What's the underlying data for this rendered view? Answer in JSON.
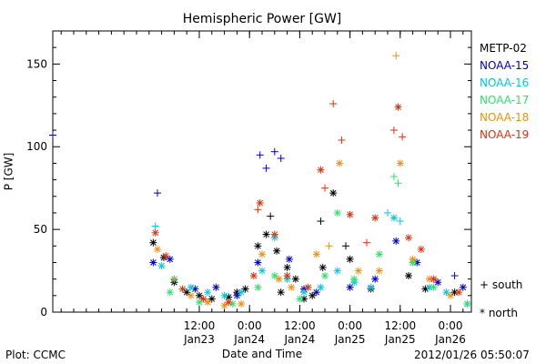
{
  "chart_data": {
    "type": "scatter",
    "title": "Hemispheric Power [GW]",
    "ylabel": "P [GW]",
    "xlabel": "Date and Time",
    "xlim": [
      "2012-01-22 01:00",
      "2012-01-26 05:00"
    ],
    "ylim": [
      0,
      170
    ],
    "yticks": [
      0,
      50,
      100,
      150
    ],
    "xticks": [
      {
        "time": "2012-01-23 12:00",
        "label1": "12:00",
        "label2": "Jan23"
      },
      {
        "time": "2012-01-24 00:00",
        "label1": "0:00",
        "label2": "Jan24"
      },
      {
        "time": "2012-01-24 12:00",
        "label1": "12:00",
        "label2": "Jan24"
      },
      {
        "time": "2012-01-25 00:00",
        "label1": "0:00",
        "label2": "Jan25"
      },
      {
        "time": "2012-01-25 12:00",
        "label1": "12:00",
        "label2": "Jan25"
      },
      {
        "time": "2012-01-26 00:00",
        "label1": "0:00",
        "label2": "Jan26"
      }
    ],
    "legend_position": "right",
    "marker_legend": [
      {
        "symbol": "+",
        "label": "south"
      },
      {
        "symbol": "*",
        "label": "north"
      }
    ],
    "series": [
      {
        "name": "METP-02",
        "color": "#000000",
        "points": [
          [
            "2012-01-23 01:00",
            42,
            "*"
          ],
          [
            "2012-01-23 03:30",
            33,
            "*"
          ],
          [
            "2012-01-23 06:00",
            18,
            "*"
          ],
          [
            "2012-01-23 09:00",
            12,
            "*"
          ],
          [
            "2012-01-23 12:00",
            10,
            "*"
          ],
          [
            "2012-01-23 15:00",
            8,
            "*"
          ],
          [
            "2012-01-23 19:00",
            9,
            "*"
          ],
          [
            "2012-01-23 21:00",
            12,
            "*"
          ],
          [
            "2012-01-23 23:00",
            14,
            "*"
          ],
          [
            "2012-01-24 02:00",
            40,
            "*"
          ],
          [
            "2012-01-24 04:00",
            47,
            "*"
          ],
          [
            "2012-01-24 05:00",
            58,
            "+"
          ],
          [
            "2012-01-24 06:30",
            37,
            "*"
          ],
          [
            "2012-01-24 07:30",
            12,
            "*"
          ],
          [
            "2012-01-24 09:00",
            27,
            "*"
          ],
          [
            "2012-01-24 11:00",
            20,
            "*"
          ],
          [
            "2012-01-24 13:00",
            8,
            "*"
          ],
          [
            "2012-01-24 15:00",
            10,
            "*"
          ],
          [
            "2012-01-24 17:00",
            55,
            "+"
          ],
          [
            "2012-01-24 17:30",
            27,
            "*"
          ],
          [
            "2012-01-24 20:00",
            72,
            "*"
          ],
          [
            "2012-01-24 23:00",
            40,
            "+"
          ],
          [
            "2012-01-25 00:00",
            32,
            "*"
          ],
          [
            "2012-01-25 05:00",
            14,
            "*"
          ],
          [
            "2012-01-25 14:00",
            22,
            "*"
          ],
          [
            "2012-01-25 18:00",
            14,
            "*"
          ],
          [
            "2012-01-26 01:00",
            12,
            "*"
          ]
        ]
      },
      {
        "name": "NOAA-15",
        "color": "#0000c8",
        "points": [
          [
            "2012-01-22 01:00",
            107,
            "+"
          ],
          [
            "2012-01-23 02:00",
            72,
            "+"
          ],
          [
            "2012-01-23 01:00",
            30,
            "*"
          ],
          [
            "2012-01-23 05:00",
            32,
            "*"
          ],
          [
            "2012-01-23 11:00",
            14,
            "*"
          ],
          [
            "2012-01-23 16:00",
            15,
            "*"
          ],
          [
            "2012-01-23 21:00",
            10,
            "*"
          ],
          [
            "2012-01-24 02:00",
            30,
            "*"
          ],
          [
            "2012-01-24 02:30",
            95,
            "+"
          ],
          [
            "2012-01-24 04:00",
            87,
            "+"
          ],
          [
            "2012-01-24 06:00",
            97,
            "+"
          ],
          [
            "2012-01-24 07:30",
            93,
            "+"
          ],
          [
            "2012-01-24 09:30",
            32,
            "*"
          ],
          [
            "2012-01-24 13:00",
            14,
            "*"
          ],
          [
            "2012-01-24 16:00",
            12,
            "*"
          ],
          [
            "2012-01-25 00:00",
            15,
            "*"
          ],
          [
            "2012-01-25 06:00",
            20,
            "*"
          ],
          [
            "2012-01-25 11:00",
            43,
            "*"
          ],
          [
            "2012-01-25 16:00",
            30,
            "*"
          ],
          [
            "2012-01-25 21:00",
            18,
            "*"
          ],
          [
            "2012-01-26 01:00",
            22,
            "+"
          ],
          [
            "2012-01-26 03:00",
            15,
            "*"
          ]
        ]
      },
      {
        "name": "NOAA-16",
        "color": "#00c8e0",
        "points": [
          [
            "2012-01-23 01:30",
            52,
            "+"
          ],
          [
            "2012-01-23 03:00",
            28,
            "*"
          ],
          [
            "2012-01-23 06:00",
            20,
            "*"
          ],
          [
            "2012-01-23 10:00",
            15,
            "*"
          ],
          [
            "2012-01-23 14:00",
            12,
            "*"
          ],
          [
            "2012-01-23 18:00",
            10,
            "*"
          ],
          [
            "2012-01-23 22:00",
            12,
            "*"
          ],
          [
            "2012-01-24 03:00",
            25,
            "*"
          ],
          [
            "2012-01-24 06:00",
            45,
            "*"
          ],
          [
            "2012-01-24 09:00",
            20,
            "*"
          ],
          [
            "2012-01-24 13:00",
            12,
            "*"
          ],
          [
            "2012-01-24 17:00",
            15,
            "*"
          ],
          [
            "2012-01-24 21:00",
            25,
            "*"
          ],
          [
            "2012-01-25 01:00",
            18,
            "*"
          ],
          [
            "2012-01-25 05:00",
            15,
            "*"
          ],
          [
            "2012-01-25 09:00",
            60,
            "+"
          ],
          [
            "2012-01-25 10:30",
            57,
            "*"
          ],
          [
            "2012-01-25 12:00",
            55,
            "+"
          ],
          [
            "2012-01-25 15:00",
            30,
            "*"
          ],
          [
            "2012-01-25 19:00",
            15,
            "*"
          ],
          [
            "2012-01-25 23:00",
            12,
            "*"
          ],
          [
            "2012-01-26 04:00",
            5,
            "*"
          ]
        ]
      },
      {
        "name": "NOAA-17",
        "color": "#30e070",
        "points": [
          [
            "2012-01-23 05:00",
            12,
            "*"
          ],
          [
            "2012-01-23 12:00",
            6,
            "*"
          ],
          [
            "2012-01-23 20:00",
            5,
            "*"
          ],
          [
            "2012-01-24 02:00",
            15,
            "*"
          ],
          [
            "2012-01-24 06:00",
            22,
            "*"
          ],
          [
            "2012-01-24 12:00",
            8,
            "*"
          ],
          [
            "2012-01-24 18:00",
            22,
            "*"
          ],
          [
            "2012-01-24 21:00",
            60,
            "*"
          ],
          [
            "2012-01-25 01:00",
            20,
            "*"
          ],
          [
            "2012-01-25 07:00",
            35,
            "*"
          ],
          [
            "2012-01-25 10:30",
            82,
            "+"
          ],
          [
            "2012-01-25 11:30",
            78,
            "+"
          ],
          [
            "2012-01-25 15:00",
            30,
            "*"
          ],
          [
            "2012-01-25 20:00",
            15,
            "*"
          ],
          [
            "2012-01-26 04:00",
            5,
            "*"
          ]
        ]
      },
      {
        "name": "NOAA-18",
        "color": "#f09010",
        "points": [
          [
            "2012-01-23 02:00",
            38,
            "*"
          ],
          [
            "2012-01-23 06:00",
            20,
            "+"
          ],
          [
            "2012-01-23 10:00",
            10,
            "*"
          ],
          [
            "2012-01-23 14:00",
            6,
            "*"
          ],
          [
            "2012-01-23 18:00",
            4,
            "*"
          ],
          [
            "2012-01-23 22:00",
            5,
            "*"
          ],
          [
            "2012-01-24 03:00",
            35,
            "*"
          ],
          [
            "2012-01-24 07:00",
            20,
            "*"
          ],
          [
            "2012-01-24 10:00",
            15,
            "*"
          ],
          [
            "2012-01-24 16:00",
            35,
            "*"
          ],
          [
            "2012-01-24 19:00",
            40,
            "+"
          ],
          [
            "2012-01-24 21:30",
            90,
            "*"
          ],
          [
            "2012-01-25 02:00",
            25,
            "*"
          ],
          [
            "2012-01-25 07:00",
            25,
            "*"
          ],
          [
            "2012-01-25 11:00",
            155,
            "+"
          ],
          [
            "2012-01-25 12:00",
            90,
            "*"
          ],
          [
            "2012-01-25 15:00",
            32,
            "*"
          ],
          [
            "2012-01-25 19:00",
            20,
            "*"
          ],
          [
            "2012-01-26 00:00",
            10,
            "*"
          ]
        ]
      },
      {
        "name": "NOAA-19",
        "color": "#e03010",
        "points": [
          [
            "2012-01-23 01:30",
            48,
            "*"
          ],
          [
            "2012-01-23 04:00",
            34,
            "*"
          ],
          [
            "2012-01-23 08:00",
            14,
            "*"
          ],
          [
            "2012-01-23 13:00",
            8,
            "*"
          ],
          [
            "2012-01-23 19:00",
            6,
            "*"
          ],
          [
            "2012-01-24 01:00",
            22,
            "*"
          ],
          [
            "2012-01-24 02:00",
            62,
            "+"
          ],
          [
            "2012-01-24 02:30",
            66,
            "*"
          ],
          [
            "2012-01-24 06:00",
            47,
            "*"
          ],
          [
            "2012-01-24 09:00",
            22,
            "*"
          ],
          [
            "2012-01-24 14:00",
            15,
            "*"
          ],
          [
            "2012-01-24 17:00",
            86,
            "*"
          ],
          [
            "2012-01-24 18:00",
            75,
            "+"
          ],
          [
            "2012-01-24 20:00",
            126,
            "+"
          ],
          [
            "2012-01-24 22:00",
            104,
            "+"
          ],
          [
            "2012-01-25 00:00",
            59,
            "*"
          ],
          [
            "2012-01-25 04:00",
            42,
            "+"
          ],
          [
            "2012-01-25 06:00",
            57,
            "*"
          ],
          [
            "2012-01-25 10:30",
            110,
            "+"
          ],
          [
            "2012-01-25 11:30",
            124,
            "*"
          ],
          [
            "2012-01-25 12:30",
            106,
            "+"
          ],
          [
            "2012-01-25 14:00",
            45,
            "*"
          ],
          [
            "2012-01-25 17:00",
            38,
            "*"
          ],
          [
            "2012-01-25 20:00",
            20,
            "*"
          ],
          [
            "2012-01-26 02:00",
            12,
            "*"
          ]
        ]
      }
    ]
  },
  "footer": {
    "left": "Plot: CCMC",
    "right": "2012/01/26 05:50:07"
  }
}
